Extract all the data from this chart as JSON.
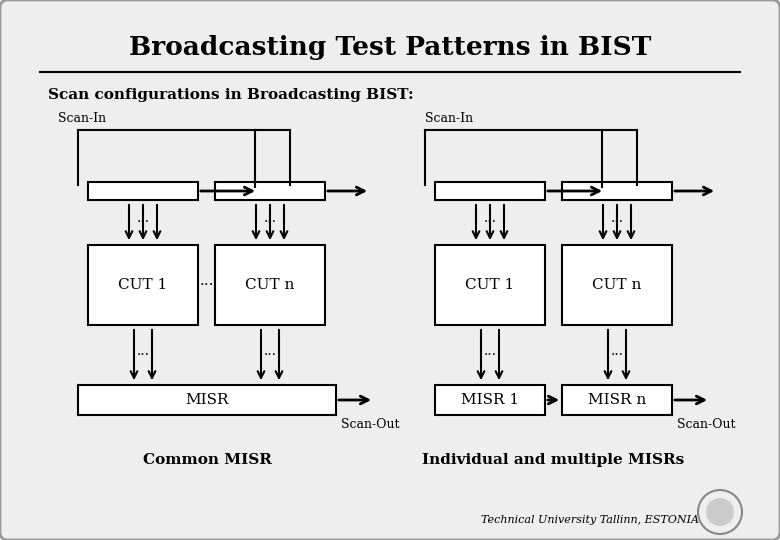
{
  "title": "Broadcasting Test Patterns in BIST",
  "subtitle": "Scan configurations in Broadcasting BIST:",
  "bg_color": "#eeeeee",
  "border_color": "#999999",
  "box_color": "#ffffff",
  "line_color": "#000000",
  "footer": "Technical University Tallinn, ESTONIA"
}
